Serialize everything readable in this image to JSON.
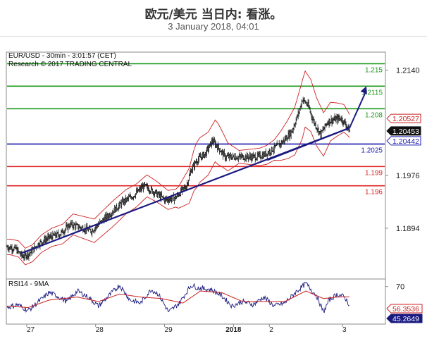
{
  "page": {
    "title": "欧元/美元 当日内: 看涨。",
    "subtitle": "3 January 2018, 04:01"
  },
  "colors": {
    "resistance": "#1c9a1c",
    "pivot": "#1a1ab0",
    "support": "#e02020",
    "bollinger": "#cc2020",
    "candle": "#111111",
    "trendline": "#1a1a80",
    "rsi": "#1a1a80",
    "rsi_ma": "#cc2020",
    "current_price_tag": "#111111"
  },
  "chart_data": [
    {
      "type": "candlestick",
      "header_line1": "EUR/USD - 30min - 3:01:57 (CET)",
      "header_line2": "Research © 2017 TRADING CENTRAL",
      "ylim": [
        1.1815,
        1.2168
      ],
      "y_ticks": [
        1.214,
        1.1976,
        1.1894
      ],
      "x_tick_labels": [
        {
          "label": "27",
          "bar": 28,
          "bold": false
        },
        {
          "label": "28",
          "bar": 126,
          "bold": false
        },
        {
          "label": "29",
          "bar": 224,
          "bold": false
        },
        {
          "label": "2018",
          "bar": 322,
          "bold": true
        },
        {
          "label": "2",
          "bar": 373,
          "bold": false
        },
        {
          "label": "3",
          "bar": 477,
          "bold": false
        }
      ],
      "bar_count": 488,
      "levels": [
        {
          "label": "1.215",
          "value": 1.215,
          "role": "resistance",
          "text_color": "#1c9a1c"
        },
        {
          "label": "1.2115",
          "value": 1.2115,
          "role": "resistance",
          "text_color": "#1c9a1c"
        },
        {
          "label": "1.208",
          "value": 1.208,
          "role": "resistance",
          "text_color": "#1c9a1c"
        },
        {
          "label": "1.2025",
          "value": 1.2025,
          "role": "pivot",
          "text_color": "#1a1ab0"
        },
        {
          "label": "1.199",
          "value": 1.199,
          "role": "support",
          "text_color": "#e02020"
        },
        {
          "label": "1.196",
          "value": 1.196,
          "role": "support",
          "text_color": "#e02020"
        }
      ],
      "price_anchors": [
        [
          0,
          1.1865
        ],
        [
          12,
          1.1862
        ],
        [
          22,
          1.185
        ],
        [
          32,
          1.1855
        ],
        [
          45,
          1.187
        ],
        [
          60,
          1.188
        ],
        [
          75,
          1.1885
        ],
        [
          90,
          1.19
        ],
        [
          105,
          1.1895
        ],
        [
          120,
          1.189
        ],
        [
          135,
          1.1905
        ],
        [
          150,
          1.192
        ],
        [
          165,
          1.1935
        ],
        [
          180,
          1.1945
        ],
        [
          195,
          1.196
        ],
        [
          210,
          1.195
        ],
        [
          225,
          1.1938
        ],
        [
          240,
          1.1942
        ],
        [
          255,
          1.196
        ],
        [
          262,
          1.1985
        ],
        [
          270,
          1.2
        ],
        [
          282,
          1.201
        ],
        [
          292,
          1.203
        ],
        [
          300,
          1.202
        ],
        [
          310,
          1.2005
        ],
        [
          320,
          1.2005
        ],
        [
          340,
          1.2005
        ],
        [
          355,
          1.2005
        ],
        [
          365,
          1.2008
        ],
        [
          375,
          1.2015
        ],
        [
          385,
          1.2022
        ],
        [
          395,
          1.2032
        ],
        [
          405,
          1.2045
        ],
        [
          415,
          1.2075
        ],
        [
          420,
          1.2095
        ],
        [
          428,
          1.2085
        ],
        [
          436,
          1.206
        ],
        [
          446,
          1.204
        ],
        [
          456,
          1.206
        ],
        [
          465,
          1.2063
        ],
        [
          475,
          1.2065
        ],
        [
          482,
          1.2055
        ],
        [
          487,
          1.2045
        ]
      ],
      "bollinger_width_anchors": [
        [
          0,
          0.0012
        ],
        [
          60,
          0.0014
        ],
        [
          150,
          0.002
        ],
        [
          200,
          0.0017
        ],
        [
          240,
          0.0014
        ],
        [
          270,
          0.0035
        ],
        [
          300,
          0.0032
        ],
        [
          330,
          0.001
        ],
        [
          380,
          0.0016
        ],
        [
          420,
          0.0045
        ],
        [
          460,
          0.003
        ],
        [
          487,
          0.0018
        ]
      ],
      "trendlines": [
        {
          "from": [
            20,
            1.1855
          ],
          "to": [
            487,
            1.205
          ]
        },
        {
          "from": [
            370,
            1.2
          ],
          "to": [
            487,
            1.205
          ]
        }
      ],
      "projection_arrow": {
        "from": [
          487,
          1.205
        ],
        "to": [
          503,
          1.2115
        ]
      },
      "price_tags": [
        {
          "label": "1.20527",
          "value": 1.20527,
          "style": "red-outline"
        },
        {
          "label": "1.20453",
          "value": 1.20453,
          "style": "black-fill"
        },
        {
          "label": "1.20442",
          "value": 1.20442,
          "style": "blue-outline"
        }
      ]
    },
    {
      "type": "line",
      "title": "RSI14 - 9MA",
      "ylim": [
        20,
        80
      ],
      "y_ticks": [
        70
      ],
      "series": [
        {
          "role": "rsi",
          "anchors": [
            [
              0,
              42
            ],
            [
              15,
              46
            ],
            [
              30,
              38
            ],
            [
              45,
              50
            ],
            [
              60,
              62
            ],
            [
              70,
              58
            ],
            [
              85,
              50
            ],
            [
              100,
              64
            ],
            [
              115,
              56
            ],
            [
              130,
              44
            ],
            [
              145,
              58
            ],
            [
              160,
              72
            ],
            [
              175,
              52
            ],
            [
              190,
              48
            ],
            [
              205,
              66
            ],
            [
              215,
              60
            ],
            [
              230,
              36
            ],
            [
              245,
              48
            ],
            [
              262,
              72
            ],
            [
              272,
              68
            ],
            [
              290,
              66
            ],
            [
              305,
              58
            ],
            [
              320,
              44
            ],
            [
              335,
              50
            ],
            [
              350,
              46
            ],
            [
              365,
              56
            ],
            [
              380,
              44
            ],
            [
              395,
              48
            ],
            [
              410,
              62
            ],
            [
              425,
              74
            ],
            [
              440,
              58
            ],
            [
              450,
              36
            ],
            [
              458,
              52
            ],
            [
              470,
              60
            ],
            [
              480,
              56
            ],
            [
              487,
              45.2649
            ]
          ]
        },
        {
          "role": "ma",
          "anchors": [
            [
              0,
              44
            ],
            [
              30,
              42
            ],
            [
              60,
              52
            ],
            [
              100,
              56
            ],
            [
              130,
              50
            ],
            [
              160,
              60
            ],
            [
              190,
              56
            ],
            [
              220,
              54
            ],
            [
              250,
              48
            ],
            [
              275,
              64
            ],
            [
              305,
              62
            ],
            [
              335,
              50
            ],
            [
              365,
              50
            ],
            [
              395,
              50
            ],
            [
              425,
              64
            ],
            [
              450,
              54
            ],
            [
              470,
              56
            ],
            [
              487,
              56.3536
            ]
          ]
        }
      ],
      "value_tags": [
        {
          "label": "56.3536",
          "value": 56.3536,
          "style": "red-outline"
        },
        {
          "label": "45.2649",
          "value": 45.2649,
          "style": "blue-fill"
        }
      ]
    }
  ]
}
